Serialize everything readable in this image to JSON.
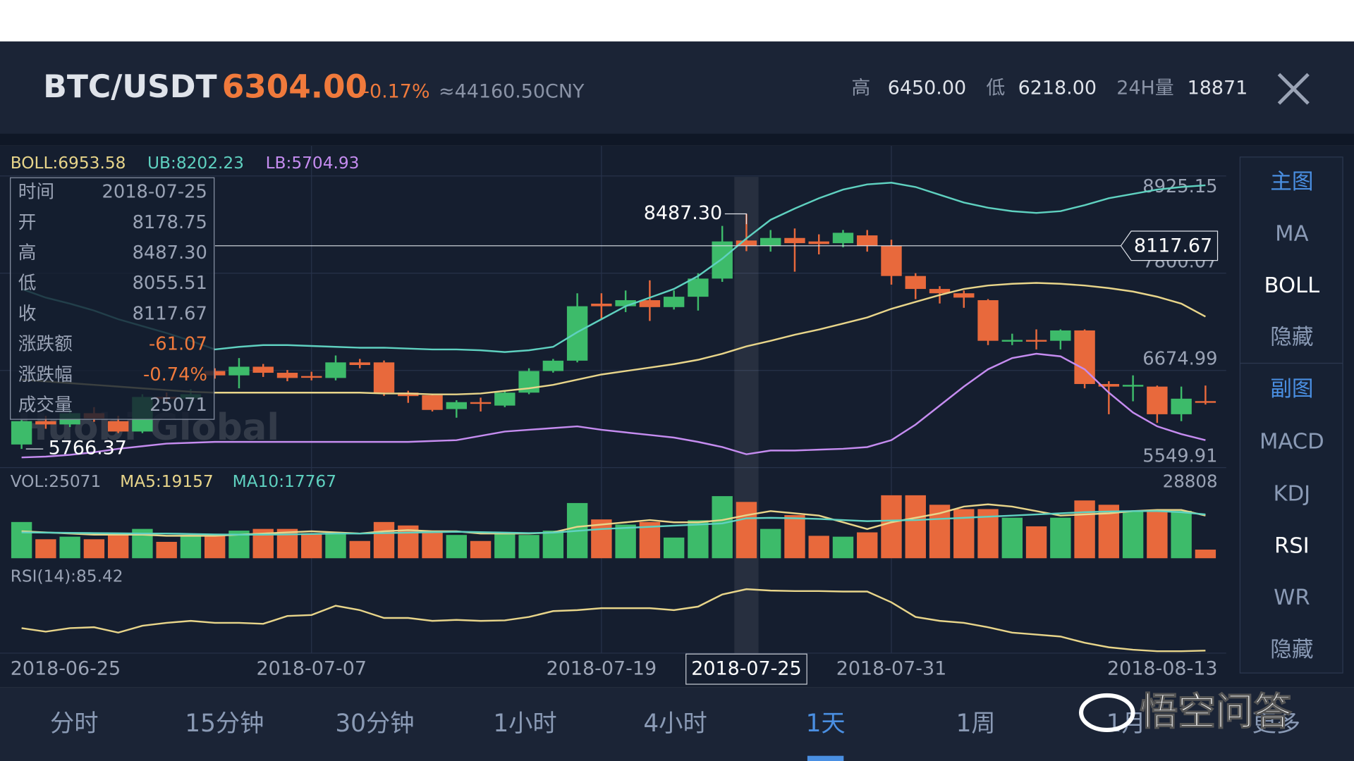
{
  "header": {
    "pair": "BTC/USDT",
    "price": "6304.00",
    "change": "-0.17%",
    "cny": "≈44160.50CNY",
    "high_label": "高",
    "high": "6450.00",
    "low_label": "低",
    "low": "6218.00",
    "vol_label": "24H量",
    "vol": "18871"
  },
  "chart_data": {
    "type": "candlestick",
    "categories": [
      "2018-06-25",
      null,
      null,
      null,
      null,
      null,
      null,
      null,
      null,
      null,
      null,
      null,
      "2018-07-07",
      null,
      null,
      null,
      null,
      null,
      null,
      null,
      null,
      null,
      null,
      null,
      "2018-07-19",
      null,
      null,
      null,
      null,
      null,
      "2018-07-25",
      null,
      null,
      null,
      null,
      null,
      "2018-07-31",
      null,
      null,
      null,
      null,
      null,
      null,
      null,
      null,
      null,
      null,
      null,
      null,
      "2018-08-13"
    ],
    "open": [
      5818,
      6088,
      6050,
      6180,
      6088,
      5968,
      6368,
      6350,
      6668,
      6618,
      6718,
      6648,
      6610,
      6588,
      6768,
      6768,
      6418,
      6388,
      6228,
      6308,
      6268,
      6418,
      6668,
      6788,
      7448,
      7418,
      7488,
      7408,
      7528,
      7738,
      8178.75,
      8118,
      8208,
      8168,
      8148,
      8238,
      8118,
      7768,
      7618,
      7568,
      7488,
      7008,
      7028,
      7018,
      7138,
      6518,
      6488,
      6488,
      6168,
      6320
    ],
    "high": [
      6100,
      6150,
      6220,
      6250,
      6150,
      6400,
      6420,
      6460,
      6700,
      6818,
      6750,
      6680,
      6660,
      6848,
      6808,
      6790,
      6440,
      6400,
      6330,
      6360,
      6440,
      6700,
      6808,
      7568,
      7568,
      7600,
      7718,
      7600,
      7800,
      8348,
      8487.3,
      8300,
      8318,
      8250,
      8300,
      8300,
      8188,
      7800,
      7650,
      7600,
      7500,
      7100,
      7150,
      7150,
      7150,
      6550,
      6618,
      6500,
      6488,
      6500
    ],
    "low": [
      5766.37,
      6000,
      6020,
      6080,
      5950,
      5950,
      6300,
      6300,
      6580,
      6468,
      6600,
      6550,
      6560,
      6560,
      6700,
      6380,
      6300,
      6200,
      6128,
      6200,
      6250,
      6400,
      6650,
      6768,
      7268,
      7350,
      7248,
      7380,
      7368,
      7700,
      8055.51,
      8050,
      7818,
      8018,
      8100,
      8050,
      7668,
      7500,
      7450,
      7400,
      6968,
      6968,
      6918,
      6918,
      6468,
      6168,
      6318,
      6068,
      6088,
      6280
    ],
    "close": [
      6088,
      6050,
      6180,
      6120,
      5968,
      6368,
      6350,
      6400,
      6618,
      6718,
      6648,
      6588,
      6590,
      6768,
      6738,
      6418,
      6378,
      6218,
      6308,
      6298,
      6418,
      6668,
      6788,
      7418,
      7418,
      7488,
      7408,
      7528,
      7738,
      8168,
      8117.67,
      8208,
      8148,
      8138,
      8268,
      8118,
      7768,
      7618,
      7568,
      7518,
      7018,
      7028,
      7008,
      7138,
      6518,
      6488,
      6508,
      6168,
      6348,
      6304
    ],
    "up_color": "#3dbb6a",
    "down_color": "#e8693c",
    "ylim": [
      5549.91,
      8925.15
    ],
    "yticks": [
      8925.15,
      7800.07,
      6674.99,
      5549.91
    ],
    "series": [
      {
        "name": "BOLL:6953.58",
        "color": "#e8d58a",
        "values": [
          6568,
          6548,
          6528,
          6508,
          6488,
          6468,
          6448,
          6428,
          6418,
          6418,
          6418,
          6418,
          6418,
          6418,
          6418,
          6408,
          6408,
          6398,
          6398,
          6408,
          6438,
          6468,
          6508,
          6568,
          6628,
          6668,
          6708,
          6748,
          6798,
          6868,
          6953.58,
          7018,
          7088,
          7148,
          7218,
          7288,
          7388,
          7468,
          7548,
          7618,
          7658,
          7678,
          7688,
          7678,
          7658,
          7628,
          7588,
          7528,
          7448,
          7298
        ]
      },
      {
        "name": "UB:8202.23",
        "color": "#5fd1c0",
        "values": [
          7618,
          7518,
          7448,
          7368,
          7268,
          7188,
          7108,
          7018,
          6918,
          6948,
          6968,
          6968,
          6958,
          6948,
          6938,
          6938,
          6928,
          6918,
          6918,
          6908,
          6888,
          6908,
          6948,
          7118,
          7268,
          7418,
          7518,
          7618,
          7768,
          7968,
          8202.23,
          8418,
          8548,
          8668,
          8768,
          8828,
          8848,
          8798,
          8708,
          8618,
          8558,
          8518,
          8498,
          8518,
          8588,
          8668,
          8718,
          8768,
          8798,
          8818
        ]
      },
      {
        "name": "LB:5704.93",
        "color": "#c58cf0",
        "values": [
          5668,
          5678,
          5698,
          5728,
          5768,
          5798,
          5828,
          5838,
          5848,
          5848,
          5848,
          5848,
          5848,
          5848,
          5848,
          5848,
          5848,
          5858,
          5868,
          5918,
          5968,
          5988,
          6008,
          6028,
          5988,
          5958,
          5928,
          5898,
          5848,
          5788,
          5704.93,
          5748,
          5748,
          5758,
          5768,
          5788,
          5868,
          6048,
          6268,
          6488,
          6688,
          6818,
          6868,
          6838,
          6688,
          6418,
          6188,
          6028,
          5938,
          5868
        ]
      }
    ],
    "max_mark": {
      "value": 8487.3,
      "label": "8487.30"
    },
    "min_mark": {
      "value": 5766.37,
      "label": "5766.37"
    },
    "price_line": {
      "value": 8117.67,
      "label": "8117.67"
    },
    "selected": 30,
    "watermark": "Huobi Global",
    "tooltip": {
      "rows": [
        {
          "label": "时间",
          "value": "2018-07-25"
        },
        {
          "label": "开",
          "value": "8178.75"
        },
        {
          "label": "高",
          "value": "8487.30"
        },
        {
          "label": "低",
          "value": "8055.51"
        },
        {
          "label": "收",
          "value": "8117.67"
        },
        {
          "label": "涨跌额",
          "value": "-61.07"
        },
        {
          "label": "涨跌幅",
          "value": "-0.74%"
        },
        {
          "label": "成交量",
          "value": "25071"
        }
      ]
    },
    "volume": {
      "name": "VOL:25071",
      "ylim": [
        0,
        28808
      ],
      "yticks": [
        28808
      ],
      "values": [
        16128,
        8448,
        9600,
        8448,
        11136,
        13056,
        7296,
        10368,
        10368,
        12288,
        13056,
        13056,
        11136,
        11520,
        7680,
        16128,
        14592,
        11520,
        10368,
        7680,
        11520,
        10368,
        12288,
        24576,
        17280,
        14976,
        16128,
        9216,
        16896,
        27648,
        25071,
        13056,
        19200,
        9984,
        9600,
        11520,
        28032,
        28032,
        23808,
        21888,
        21888,
        18048,
        14208,
        18048,
        25728,
        23808,
        21120,
        21120,
        21120,
        3840
      ],
      "series": [
        {
          "name": "MA5:19157",
          "color": "#e8d58a",
          "values": [
            12000,
            11500,
            11000,
            10500,
            10500,
            10500,
            10000,
            10000,
            10000,
            10500,
            11000,
            11500,
            12000,
            11500,
            11000,
            12000,
            12500,
            12000,
            12000,
            11000,
            11000,
            11000,
            11500,
            14000,
            15000,
            16000,
            17000,
            16000,
            16000,
            17000,
            19157,
            21000,
            20000,
            19000,
            16000,
            13000,
            16000,
            18000,
            20000,
            23000,
            24000,
            23000,
            21000,
            19000,
            19500,
            20000,
            21000,
            21500,
            21500,
            19000
          ]
        },
        {
          "name": "MA10:17767",
          "color": "#5fd1c0",
          "values": [
            11500,
            11400,
            11300,
            11200,
            11100,
            11000,
            11000,
            10800,
            10600,
            10500,
            10500,
            10600,
            10800,
            11000,
            11000,
            11200,
            11400,
            11600,
            11800,
            11600,
            11400,
            11200,
            11400,
            12200,
            13000,
            13500,
            14000,
            14500,
            15000,
            15500,
            17767,
            18000,
            17800,
            17500,
            17000,
            16500,
            16800,
            17000,
            17500,
            18000,
            18500,
            19000,
            19500,
            20000,
            20500,
            20800,
            21000,
            21000,
            20500,
            19500
          ]
        }
      ]
    },
    "rsi": {
      "name": "RSI(14):85.42",
      "color": "#e8d58a",
      "ylim": [
        20,
        95
      ],
      "values": [
        45.6,
        42,
        45.6,
        46.5,
        41,
        48,
        51,
        53,
        51,
        51,
        50,
        58,
        59,
        68.5,
        64,
        56,
        56,
        53,
        54,
        53,
        53.5,
        57,
        63,
        64,
        66,
        66,
        66,
        64,
        67.6,
        80,
        85.42,
        84,
        83.5,
        83.5,
        83,
        83,
        72,
        57,
        53,
        51,
        46.5,
        41,
        39,
        37,
        30.6,
        26,
        23.5,
        22,
        22,
        22.6
      ]
    }
  },
  "side_menu": {
    "main_title": "主图",
    "main_items": [
      "MA",
      "BOLL",
      "隐藏"
    ],
    "sub_title": "副图",
    "sub_items": [
      "MACD",
      "KDJ",
      "RSI",
      "WR",
      "隐藏"
    ],
    "main_selected": 1,
    "sub_selected": 2
  },
  "tabs": {
    "items": [
      "分时",
      "15分钟",
      "30分钟",
      "1小时",
      "4小时",
      "1天",
      "1周",
      "1月",
      "更多"
    ],
    "selected": 5
  },
  "brand": "悟空问答"
}
